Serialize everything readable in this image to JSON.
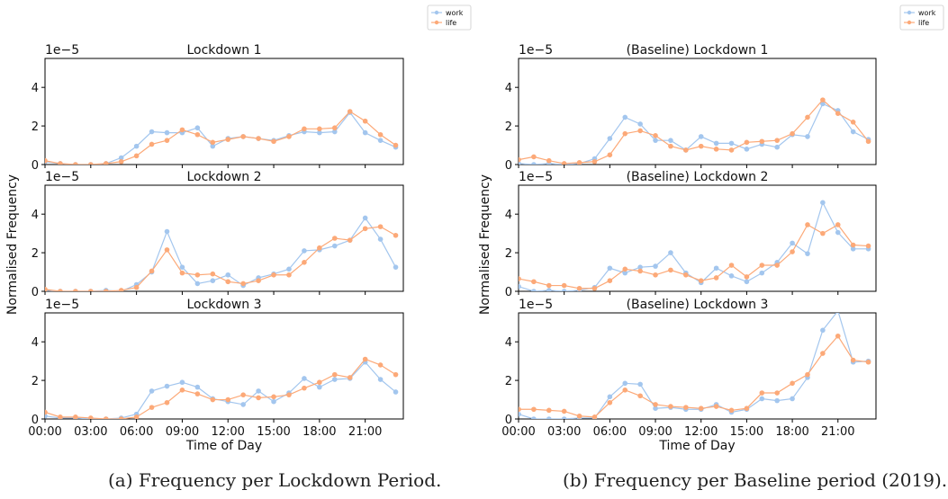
{
  "colors": {
    "work": "#a3c6ee",
    "life": "#fca978",
    "axis": "#000000"
  },
  "figure": {
    "caption_a": "(a) Frequency per Lockdown Period.",
    "caption_b": "(b) Frequency per Baseline period (2019)."
  },
  "chart_data": [
    {
      "type": "line",
      "title": "Lockdown 1",
      "xlabel": "Time of Day",
      "ylabel": "Normalised Frequency",
      "scale_label": "1e−5",
      "legend": [
        "work",
        "life"
      ],
      "x_ticks": [
        "00:00",
        "03:00",
        "06:00",
        "09:00",
        "12:00",
        "15:00",
        "18:00",
        "21:00"
      ],
      "y_ticks": [
        0,
        2,
        4
      ],
      "xlim": [
        0,
        23.5
      ],
      "ylim": [
        0,
        5.5
      ],
      "x": [
        0,
        1,
        2,
        3,
        4,
        5,
        6,
        7,
        8,
        9,
        10,
        11,
        12,
        13,
        14,
        15,
        16,
        17,
        18,
        19,
        20,
        21,
        22,
        23
      ],
      "series": [
        {
          "name": "work",
          "values": [
            0.15,
            0.05,
            0.0,
            0.0,
            0.05,
            0.35,
            0.95,
            1.7,
            1.65,
            1.65,
            1.9,
            0.95,
            1.35,
            1.45,
            1.35,
            1.25,
            1.5,
            1.7,
            1.65,
            1.7,
            2.7,
            1.65,
            1.25,
            0.9
          ]
        },
        {
          "name": "life",
          "values": [
            0.2,
            0.05,
            0.0,
            0.0,
            0.05,
            0.15,
            0.45,
            1.05,
            1.25,
            1.8,
            1.55,
            1.15,
            1.3,
            1.45,
            1.35,
            1.2,
            1.45,
            1.85,
            1.85,
            1.9,
            2.75,
            2.25,
            1.55,
            1.0
          ]
        }
      ]
    },
    {
      "type": "line",
      "title": "Lockdown 2",
      "xlabel": "Time of Day",
      "ylabel": "Normalised Frequency",
      "scale_label": "1e−5",
      "legend": [
        "work",
        "life"
      ],
      "x_ticks": [
        "00:00",
        "03:00",
        "06:00",
        "09:00",
        "12:00",
        "15:00",
        "18:00",
        "21:00"
      ],
      "y_ticks": [
        0,
        2,
        4
      ],
      "xlim": [
        0,
        23.5
      ],
      "ylim": [
        0,
        5.5
      ],
      "x": [
        0,
        1,
        2,
        3,
        4,
        5,
        6,
        7,
        8,
        9,
        10,
        11,
        12,
        13,
        14,
        15,
        16,
        17,
        18,
        19,
        20,
        21,
        22,
        23
      ],
      "series": [
        {
          "name": "work",
          "values": [
            0.05,
            0.0,
            0.0,
            0.0,
            0.05,
            0.0,
            0.35,
            1.0,
            3.1,
            1.25,
            0.4,
            0.55,
            0.85,
            0.3,
            0.7,
            0.9,
            1.15,
            2.1,
            2.15,
            2.35,
            2.65,
            3.8,
            2.7,
            1.25
          ]
        },
        {
          "name": "life",
          "values": [
            0.1,
            0.0,
            0.0,
            0.0,
            0.0,
            0.05,
            0.2,
            1.05,
            2.15,
            0.95,
            0.85,
            0.9,
            0.5,
            0.4,
            0.55,
            0.85,
            0.85,
            1.5,
            2.25,
            2.75,
            2.65,
            3.25,
            3.35,
            2.9
          ]
        }
      ]
    },
    {
      "type": "line",
      "title": "Lockdown 3",
      "xlabel": "Time of Day",
      "ylabel": "Normalised Frequency",
      "scale_label": "1e−5",
      "legend": [
        "work",
        "life"
      ],
      "x_ticks": [
        "00:00",
        "03:00",
        "06:00",
        "09:00",
        "12:00",
        "15:00",
        "18:00",
        "21:00"
      ],
      "y_ticks": [
        0,
        2,
        4
      ],
      "xlim": [
        0,
        23.5
      ],
      "ylim": [
        0,
        5.5
      ],
      "x": [
        0,
        1,
        2,
        3,
        4,
        5,
        6,
        7,
        8,
        9,
        10,
        11,
        12,
        13,
        14,
        15,
        16,
        17,
        18,
        19,
        20,
        21,
        22,
        23
      ],
      "series": [
        {
          "name": "work",
          "values": [
            0.15,
            0.05,
            0.05,
            0.0,
            0.0,
            0.05,
            0.25,
            1.45,
            1.7,
            1.9,
            1.65,
            1.05,
            0.9,
            0.75,
            1.45,
            0.9,
            1.35,
            2.1,
            1.65,
            2.05,
            2.1,
            2.95,
            2.05,
            1.4
          ]
        },
        {
          "name": "life",
          "values": [
            0.35,
            0.1,
            0.1,
            0.05,
            0.0,
            0.0,
            0.1,
            0.6,
            0.85,
            1.5,
            1.3,
            1.0,
            1.0,
            1.25,
            1.1,
            1.15,
            1.25,
            1.6,
            1.9,
            2.3,
            2.15,
            3.1,
            2.8,
            2.3
          ]
        }
      ]
    },
    {
      "type": "line",
      "title": "(Baseline) Lockdown 1",
      "xlabel": "Time of Day",
      "ylabel": "Normalised Frequency",
      "scale_label": "1e−5",
      "legend": [
        "work",
        "life"
      ],
      "x_ticks": [
        "00:00",
        "03:00",
        "06:00",
        "09:00",
        "12:00",
        "15:00",
        "18:00",
        "21:00"
      ],
      "y_ticks": [
        0,
        2,
        4
      ],
      "xlim": [
        0,
        23.5
      ],
      "ylim": [
        0,
        5.5
      ],
      "x": [
        0,
        1,
        2,
        3,
        4,
        5,
        6,
        7,
        8,
        9,
        10,
        11,
        12,
        13,
        14,
        15,
        16,
        17,
        18,
        19,
        20,
        21,
        22,
        23
      ],
      "series": [
        {
          "name": "work",
          "values": [
            0.05,
            0.0,
            0.05,
            0.0,
            0.05,
            0.3,
            1.35,
            2.45,
            2.1,
            1.25,
            1.25,
            0.75,
            1.45,
            1.1,
            1.1,
            0.8,
            1.05,
            0.9,
            1.55,
            1.45,
            3.15,
            2.8,
            1.7,
            1.3
          ]
        },
        {
          "name": "life",
          "values": [
            0.25,
            0.4,
            0.2,
            0.05,
            0.1,
            0.15,
            0.5,
            1.6,
            1.75,
            1.5,
            0.95,
            0.75,
            0.95,
            0.8,
            0.75,
            1.15,
            1.2,
            1.25,
            1.6,
            2.45,
            3.35,
            2.65,
            2.2,
            1.2
          ]
        }
      ]
    },
    {
      "type": "line",
      "title": "(Baseline) Lockdown 2",
      "xlabel": "Time of Day",
      "ylabel": "Normalised Frequency",
      "scale_label": "1e−5",
      "legend": [
        "work",
        "life"
      ],
      "x_ticks": [
        "00:00",
        "03:00",
        "06:00",
        "09:00",
        "12:00",
        "15:00",
        "18:00",
        "21:00"
      ],
      "y_ticks": [
        0,
        2,
        4
      ],
      "xlim": [
        0,
        23.5
      ],
      "ylim": [
        0,
        5.5
      ],
      "x": [
        0,
        1,
        2,
        3,
        4,
        5,
        6,
        7,
        8,
        9,
        10,
        11,
        12,
        13,
        14,
        15,
        16,
        17,
        18,
        19,
        20,
        21,
        22,
        23
      ],
      "series": [
        {
          "name": "work",
          "values": [
            0.25,
            0.0,
            0.05,
            0.0,
            0.05,
            0.2,
            1.2,
            0.95,
            1.25,
            1.3,
            2.0,
            0.95,
            0.45,
            1.2,
            0.8,
            0.5,
            0.95,
            1.5,
            2.5,
            1.95,
            4.6,
            3.05,
            2.2,
            2.2
          ]
        },
        {
          "name": "life",
          "values": [
            0.65,
            0.5,
            0.3,
            0.3,
            0.15,
            0.15,
            0.55,
            1.15,
            1.05,
            0.85,
            1.1,
            0.85,
            0.55,
            0.7,
            1.35,
            0.75,
            1.35,
            1.35,
            2.05,
            3.45,
            3.0,
            3.45,
            2.4,
            2.35
          ]
        }
      ]
    },
    {
      "type": "line",
      "title": "(Baseline) Lockdown 3",
      "xlabel": "Time of Day",
      "ylabel": "Normalised Frequency",
      "scale_label": "1e−5",
      "legend": [
        "work",
        "life"
      ],
      "x_ticks": [
        "00:00",
        "03:00",
        "06:00",
        "09:00",
        "12:00",
        "15:00",
        "18:00",
        "21:00"
      ],
      "y_ticks": [
        0,
        2,
        4
      ],
      "xlim": [
        0,
        23.5
      ],
      "ylim": [
        0,
        5.5
      ],
      "x": [
        0,
        1,
        2,
        3,
        4,
        5,
        6,
        7,
        8,
        9,
        10,
        11,
        12,
        13,
        14,
        15,
        16,
        17,
        18,
        19,
        20,
        21,
        22,
        23
      ],
      "series": [
        {
          "name": "work",
          "values": [
            0.25,
            0.0,
            0.0,
            0.0,
            0.05,
            0.05,
            1.15,
            1.85,
            1.8,
            0.55,
            0.6,
            0.5,
            0.5,
            0.75,
            0.35,
            0.5,
            1.05,
            0.95,
            1.05,
            2.15,
            4.6,
            5.6,
            2.95,
            3.0
          ]
        },
        {
          "name": "life",
          "values": [
            0.5,
            0.5,
            0.45,
            0.4,
            0.15,
            0.1,
            0.85,
            1.5,
            1.2,
            0.75,
            0.65,
            0.6,
            0.55,
            0.65,
            0.45,
            0.55,
            1.35,
            1.35,
            1.85,
            2.3,
            3.4,
            4.3,
            3.05,
            2.95
          ]
        }
      ]
    }
  ]
}
